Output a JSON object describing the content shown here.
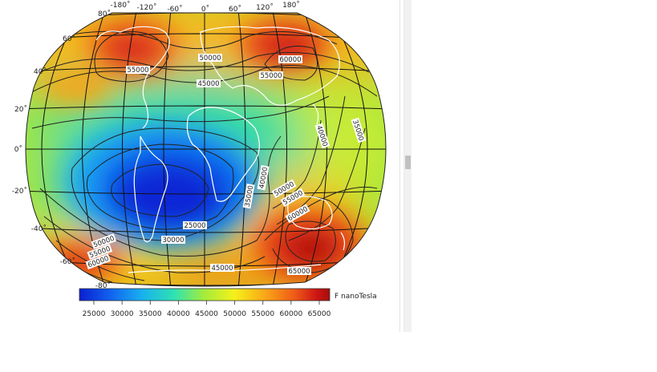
{
  "map": {
    "colorbar_label": "F nanoTesla",
    "colorbar_ticks": [
      "25000",
      "30000",
      "35000",
      "40000",
      "45000",
      "50000",
      "55000",
      "60000",
      "65000"
    ],
    "colorbar_colors": [
      "#0a1fd0",
      "#1160ee",
      "#18b0f0",
      "#2fe3b0",
      "#a6ec3a",
      "#f6f01a",
      "#f9a817",
      "#ef5a16",
      "#cc1414",
      "#a50e0e"
    ],
    "lon_labels": [
      "-180˚",
      "-120˚",
      "-60˚",
      "0˚",
      "60˚",
      "120˚",
      "180˚"
    ],
    "lat_labels": [
      "80˚",
      "60˚",
      "40˚",
      "20˚",
      "0˚",
      "-20˚",
      "-40˚",
      "-60˚",
      "-80˚"
    ],
    "contour_labels": [
      "55000",
      "50000",
      "45000",
      "60000",
      "55000",
      "35000",
      "40000",
      "35000",
      "40000",
      "50000",
      "55000",
      "60000",
      "25000",
      "30000",
      "45000",
      "50000",
      "55000",
      "60000",
      "65000"
    ]
  },
  "colors": {
    "low": "#0a1fd0",
    "high": "#a50e0e",
    "background": "#ffffff"
  }
}
